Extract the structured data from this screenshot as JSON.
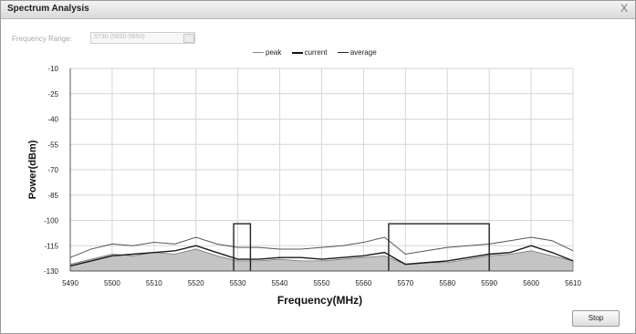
{
  "window": {
    "title": "Spectrum Analysis",
    "close_glyph": "X"
  },
  "frequency_range": {
    "label": "Frequency Range:",
    "value": "5730 (5650-5850)"
  },
  "legend": {
    "peak": "peak",
    "current": "current",
    "average": "average"
  },
  "buttons": {
    "stop_label": "Stop"
  },
  "colors": {
    "current_line": "#1a1a1a",
    "average_fill": "#c4c4c4",
    "peak_line": "#555555",
    "grid": "#d6d6d6",
    "marker": "#222222"
  },
  "chart_data": {
    "type": "line",
    "xlabel": "Frequency(MHz)",
    "ylabel": "Power(dBm)",
    "xlim": [
      5490,
      5610
    ],
    "ylim": [
      -130,
      -10
    ],
    "x_ticks": [
      5490,
      5500,
      5510,
      5520,
      5530,
      5540,
      5550,
      5560,
      5570,
      5580,
      5590,
      5600,
      5610
    ],
    "y_ticks": [
      -10,
      -25,
      -40,
      -55,
      -70,
      -85,
      -100,
      -115,
      -130
    ],
    "grid": true,
    "legend_position": "top-center",
    "series_names": [
      "peak",
      "current",
      "average"
    ],
    "channel_markers": [
      {
        "start": 5529,
        "end": 5533,
        "level": -102
      },
      {
        "start": 5566,
        "end": 5590,
        "level": -102
      }
    ],
    "peak": {
      "x": [
        5490,
        5495,
        5500,
        5505,
        5510,
        5515,
        5520,
        5525,
        5530,
        5535,
        5540,
        5545,
        5550,
        5555,
        5560,
        5565,
        5570,
        5575,
        5580,
        5585,
        5590,
        5595,
        5600,
        5605,
        5610
      ],
      "values": [
        -122,
        -117,
        -114,
        -115,
        -113,
        -114,
        -110,
        -114,
        -116,
        -116,
        -117,
        -117,
        -116,
        -115,
        -113,
        -110,
        -120,
        -118,
        -116,
        -115,
        -114,
        -112,
        -110,
        -112,
        -118
      ]
    },
    "current": {
      "x": [
        5490,
        5495,
        5500,
        5505,
        5510,
        5515,
        5520,
        5525,
        5530,
        5535,
        5540,
        5545,
        5550,
        5555,
        5560,
        5565,
        5570,
        5575,
        5580,
        5585,
        5590,
        5595,
        5600,
        5605,
        5610
      ],
      "values": [
        -127,
        -124,
        -121,
        -120,
        -119,
        -118,
        -115,
        -119,
        -123,
        -123,
        -122,
        -122,
        -123,
        -122,
        -121,
        -119,
        -126,
        -125,
        -124,
        -122,
        -120,
        -119,
        -115,
        -119,
        -124
      ]
    },
    "average": {
      "x": [
        5490,
        5495,
        5500,
        5505,
        5510,
        5515,
        5520,
        5525,
        5530,
        5535,
        5540,
        5545,
        5550,
        5555,
        5560,
        5565,
        5570,
        5575,
        5580,
        5585,
        5590,
        5595,
        5600,
        5605,
        5610
      ],
      "values": [
        -126,
        -123,
        -120,
        -121,
        -119,
        -120,
        -117,
        -121,
        -124,
        -124,
        -123,
        -124,
        -124,
        -123,
        -122,
        -121,
        -126,
        -125,
        -125,
        -123,
        -121,
        -120,
        -118,
        -121,
        -124
      ]
    }
  }
}
